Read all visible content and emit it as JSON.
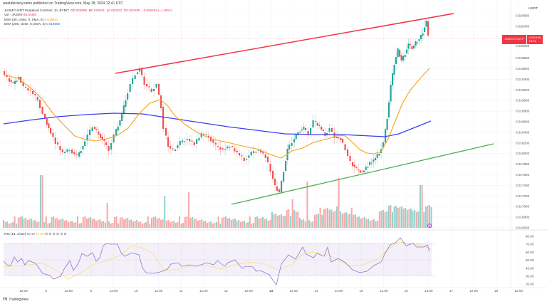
{
  "attribution": "weetabixisnyname published on TradingView.com, May 18, 2024 12:41 UTC",
  "legend": {
    "symbol": "JASMYUSDT Perpetual Contract, 1h, BYBIT",
    "open_label": "O",
    "open": "0.020599",
    "high_label": "H",
    "high": "0.020621",
    "low_label": "L",
    "low": "0.020023",
    "close_label": "C",
    "close": "0.020196",
    "change": "−0.000403 (−1.96%)",
    "vol_label": "Vol · JASMY",
    "vol": "85.546M",
    "ema1_label": "EMA (30, close, 0, SMA, 5)",
    "ema1_value": "0.019611",
    "ema2_label": "EMA (200, close, 0, EMA, 5)",
    "ema2_value": "0.018550"
  },
  "price_tag": {
    "symbol": "JASMYUSDT.P",
    "price": "0.020196",
    "countdown": "18:24"
  },
  "axis": {
    "currency": "USDT",
    "price_ticks": [
      "0.020600",
      "0.020400",
      "0.020000",
      "0.019800",
      "0.019600",
      "0.019400",
      "0.019200",
      "0.019000",
      "0.018800",
      "0.018600",
      "0.018400",
      "0.018200",
      "0.018000",
      "0.017800",
      "0.017600",
      "0.017400",
      "0.017200",
      "0.017000",
      "0.016800",
      "0.016600"
    ],
    "rsi_ticks": [
      "80.00",
      "70.00",
      "60.00",
      "50.00",
      "40.00",
      "30.00",
      "20.00"
    ],
    "time_ticks": [
      "12:00",
      "8",
      "12:00",
      "9",
      "12:00",
      "10",
      "12:00",
      "11",
      "12:00",
      "12",
      "12:00",
      "13",
      "12:00",
      "14",
      "12:00",
      "15",
      "12:00",
      "16",
      "12:00",
      "17",
      "12:00",
      "18",
      "12:00"
    ]
  },
  "rsi_legend": {
    "label": "RSI (14, close)",
    "value": "60.42",
    "ma_value": "67.86",
    "placeholders": "∅ ∅ ∅ ∅ ∅ ∅"
  },
  "branding": {
    "logo_mark": "TV",
    "name": "TradingView"
  },
  "colors": {
    "up": "#26a69a",
    "down": "#ef5350",
    "ema30": "#ff9800",
    "ema200": "#3d3df5",
    "resistance": "#f23645",
    "support": "#4caf50",
    "rsi": "#7e57c2",
    "rsi_ma": "#f9e076"
  },
  "chart_data": {
    "type": "candlestick",
    "title": "JASMYUSDT Perpetual Contract, 1h, BYBIT",
    "ylabel": "USDT",
    "ylim": [
      0.0166,
      0.0207
    ],
    "x_range": [
      "May 7",
      "May 18"
    ],
    "ohlc_summary": {
      "open": 0.020599,
      "high": 0.020621,
      "low": 0.020023,
      "close": 0.020196,
      "change": -0.000403,
      "change_pct": -1.96
    },
    "volume_last": "85.546M",
    "series": [
      {
        "name": "EMA 30",
        "last": 0.019611,
        "color": "#ff9800"
      },
      {
        "name": "EMA 200",
        "last": 0.01855,
        "color": "#3d3df5"
      }
    ],
    "trendlines": [
      {
        "name": "resistance",
        "color": "#f23645",
        "from": {
          "date": "May 9 12:00",
          "price": 0.0197
        },
        "to": {
          "date": "May 17",
          "price": 0.0205
        }
      },
      {
        "name": "support",
        "color": "#4caf50",
        "from": {
          "date": "May 12 12:00",
          "price": 0.0169
        },
        "to": {
          "date": "May 17 12:00",
          "price": 0.0178
        }
      }
    ],
    "key_points": [
      {
        "date": "May 7",
        "price": 0.0194
      },
      {
        "date": "May 8",
        "price": 0.0178
      },
      {
        "date": "May 10",
        "price": 0.0197
      },
      {
        "date": "May 11",
        "price": 0.0181
      },
      {
        "date": "May 13",
        "price": 0.0171
      },
      {
        "date": "May 14",
        "price": 0.0184
      },
      {
        "date": "May 15",
        "price": 0.0177
      },
      {
        "date": "May 16",
        "price": 0.0203
      },
      {
        "date": "May 17 12:00",
        "price": 0.0206
      }
    ],
    "rsi": {
      "period": 14,
      "value": 60.42,
      "ma": 67.86,
      "upper_band": 70,
      "lower_band": 30,
      "ylim": [
        20,
        80
      ]
    }
  }
}
